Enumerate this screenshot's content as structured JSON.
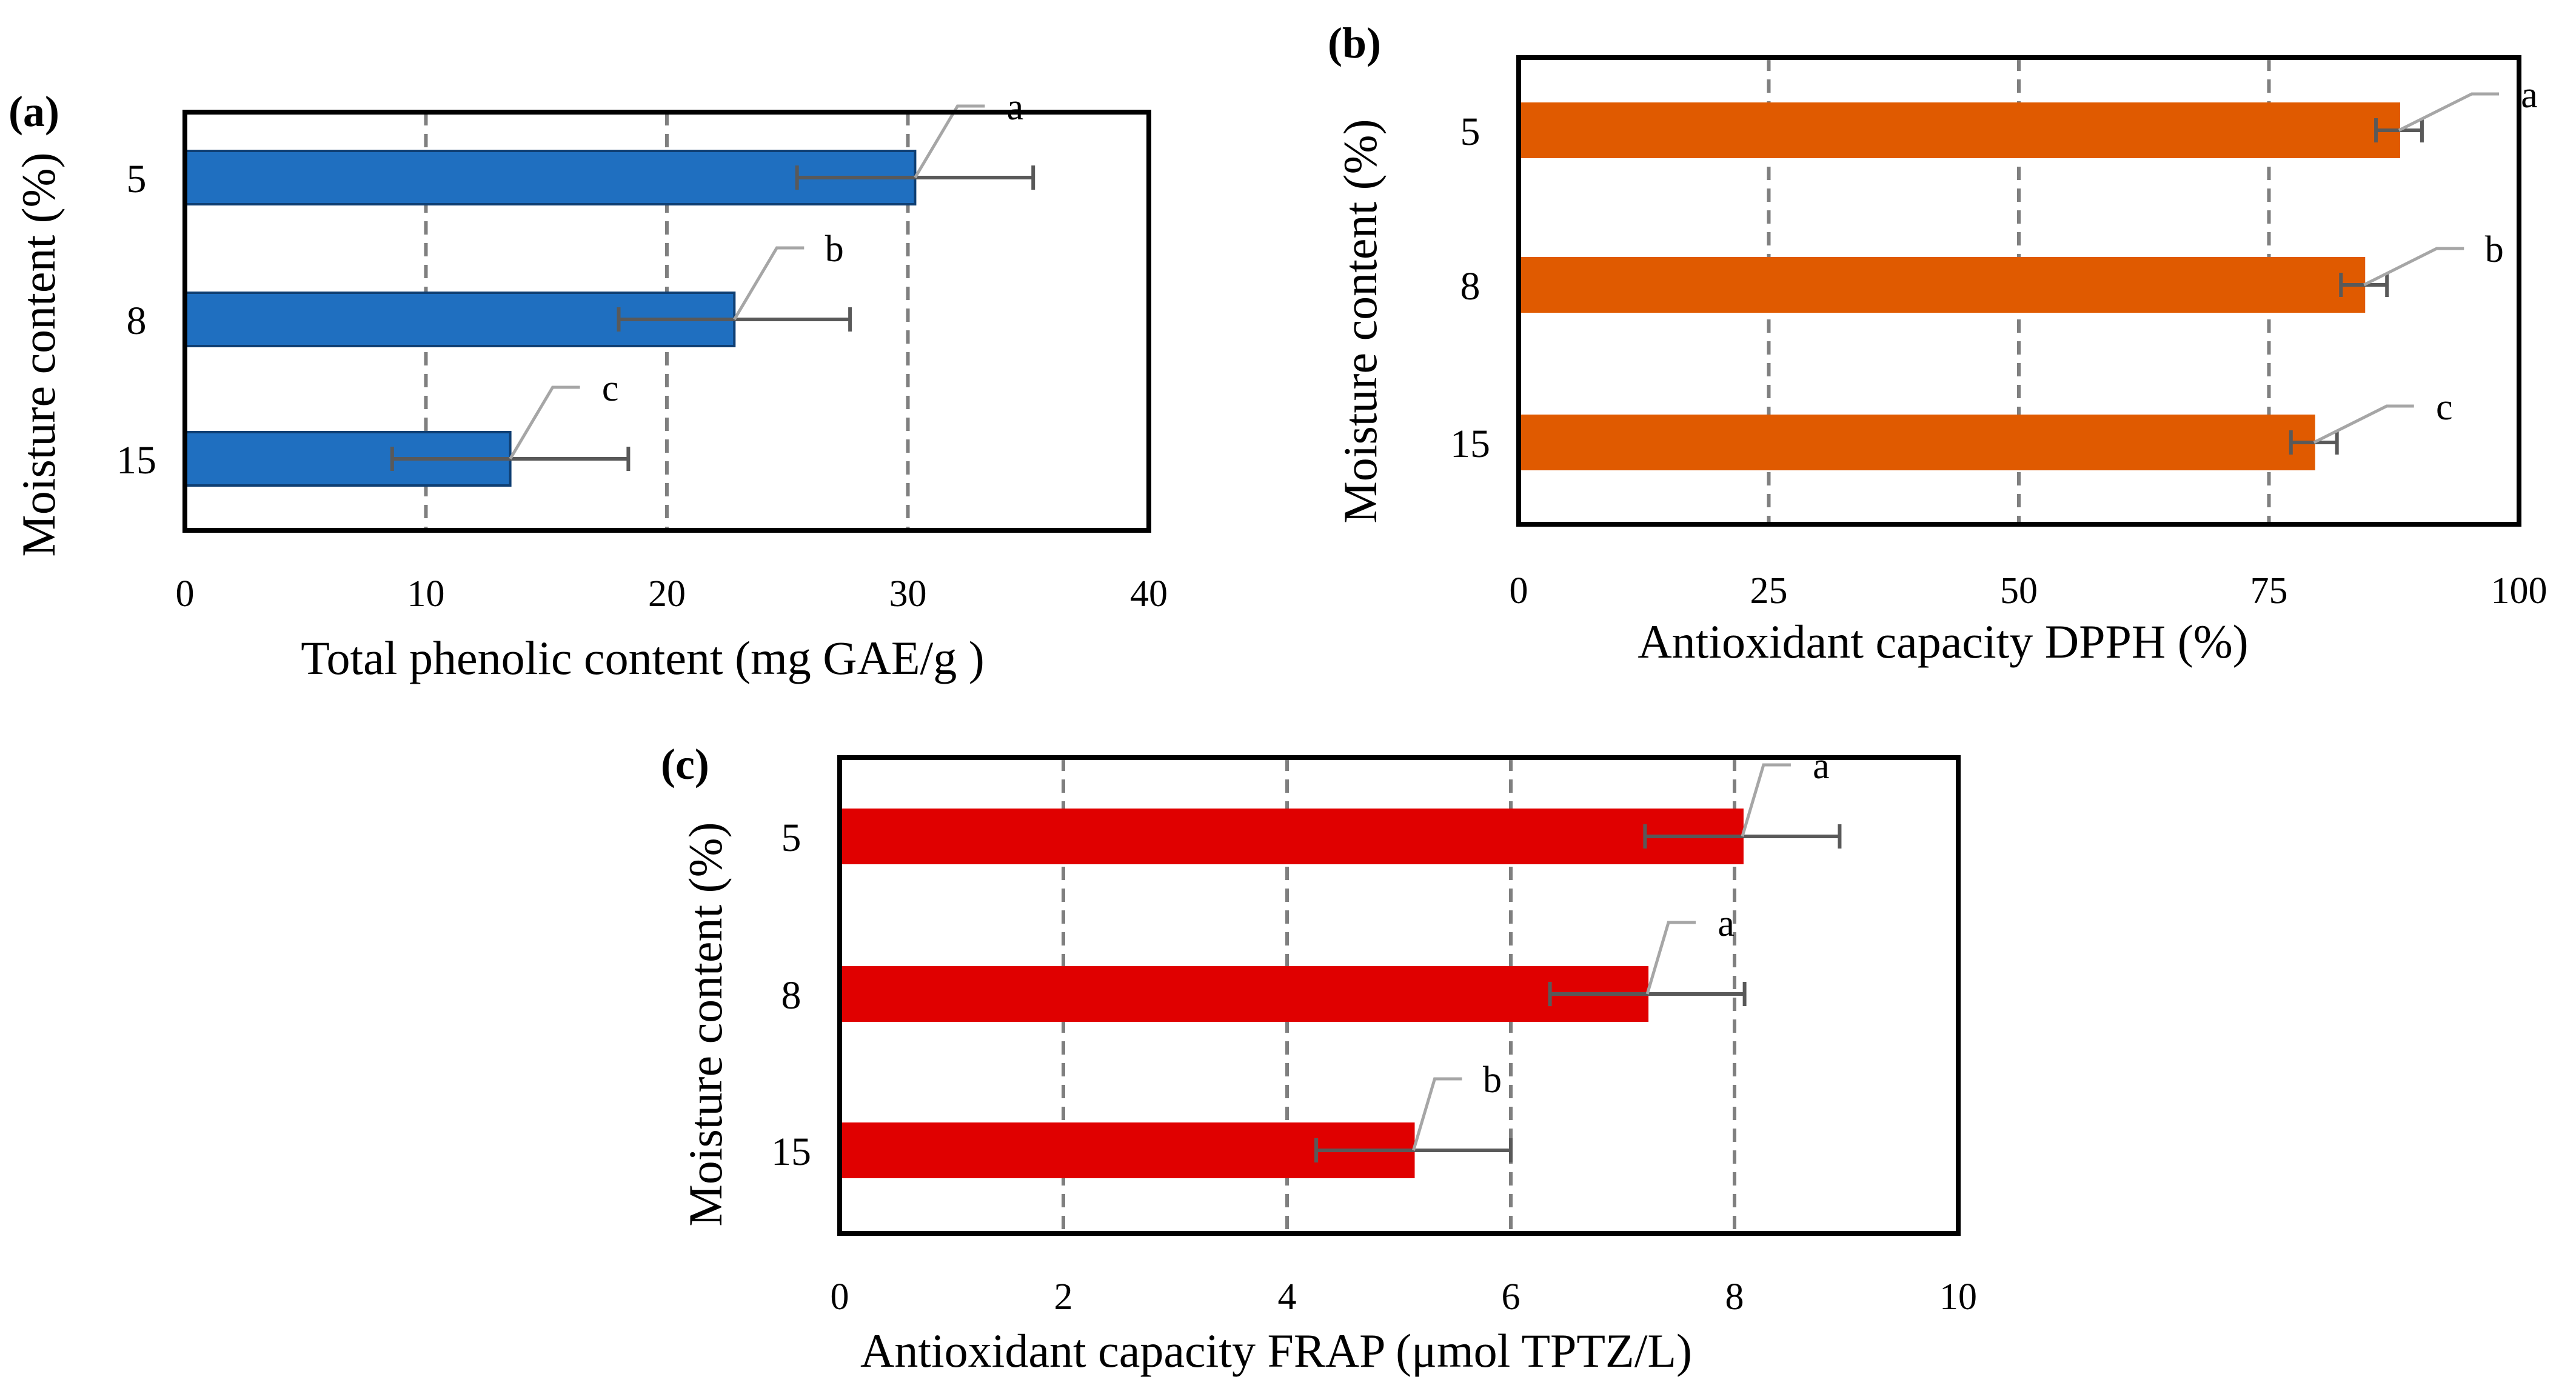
{
  "chart_data": [
    {
      "panel_label": "(a)",
      "type": "bar",
      "orientation": "horizontal",
      "categories": [
        "5",
        "8",
        "15"
      ],
      "values": [
        30.3,
        22.8,
        13.5
      ],
      "error_minus": [
        4.9,
        4.8,
        4.9
      ],
      "error_plus": [
        4.9,
        4.8,
        4.9
      ],
      "significance": [
        "a",
        "b",
        "c"
      ],
      "xlabel": "Total phenolic content (mg GAE/g )",
      "ylabel": "Moisture content (%)",
      "xlim": [
        0,
        40
      ],
      "xticks": [
        0,
        10,
        20,
        30,
        40
      ],
      "grid_values": [
        10,
        20,
        30
      ],
      "grid": true,
      "bar_color": "#1f6fc0",
      "bar_edge_color": "#0f3f73"
    },
    {
      "panel_label": "(b)",
      "type": "bar",
      "orientation": "horizontal",
      "categories": [
        "5",
        "8",
        "15"
      ],
      "values": [
        88,
        84.5,
        79.5
      ],
      "error_minus": [
        2.3,
        2.3,
        2.3
      ],
      "error_plus": [
        2.3,
        2.3,
        2.3
      ],
      "significance": [
        "a",
        "b",
        "c"
      ],
      "xlabel": "Antioxidant capacity DPPH (%)",
      "ylabel": "Moisture content (%)",
      "xlim": [
        0,
        100
      ],
      "xticks": [
        0,
        25,
        50,
        75,
        100
      ],
      "grid_values": [
        25,
        50,
        75
      ],
      "grid": true,
      "bar_color": "#e05a00",
      "bar_edge_color": "#e05a00"
    },
    {
      "panel_label": "(c)",
      "type": "bar",
      "orientation": "horizontal",
      "categories": [
        "5",
        "8",
        "15"
      ],
      "values": [
        8.07,
        7.22,
        5.13
      ],
      "error_minus": [
        0.87,
        0.87,
        0.87
      ],
      "error_plus": [
        0.87,
        0.87,
        0.87
      ],
      "significance": [
        "a",
        "a",
        "b"
      ],
      "xlabel": "Antioxidant capacity FRAP (μmol TPTZ/L)",
      "ylabel": "Moisture content (%)",
      "xlim": [
        0,
        10
      ],
      "xticks": [
        0,
        2,
        4,
        6,
        8,
        10
      ],
      "grid_values": [
        2,
        4,
        6,
        8
      ],
      "grid": true,
      "bar_color": "#e00000",
      "bar_edge_color": "#e00000"
    }
  ],
  "style": {
    "grid_color": "#7f7f7f",
    "error_bar_color": "#595959",
    "leader_line_color": "#a6a6a6",
    "frame_color": "#000000"
  }
}
